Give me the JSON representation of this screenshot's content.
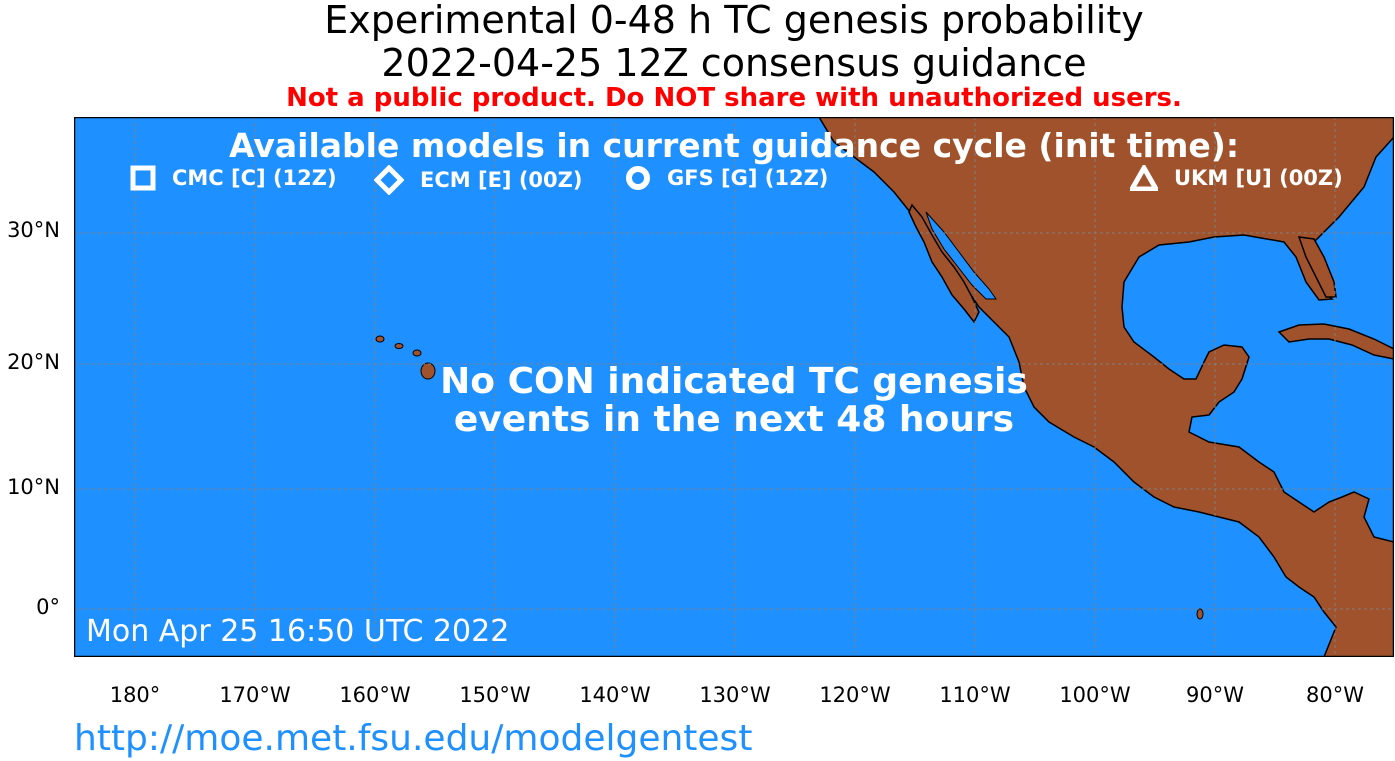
{
  "header": {
    "title_line1": "Experimental 0-48 h TC genesis probability",
    "title_line2": "2022-04-25 12Z consensus guidance",
    "warning": "Not a public product. Do NOT share with unauthorized users."
  },
  "legend": {
    "title": "Available models in current guidance cycle (init time):",
    "models": [
      {
        "label": "CMC [C] (12Z)",
        "symbol": "square-icon"
      },
      {
        "label": "ECM [E] (00Z)",
        "symbol": "diamond-icon"
      },
      {
        "label": "GFS [G] (12Z)",
        "symbol": "circle-icon"
      },
      {
        "label": "UKM [U] (00Z)",
        "symbol": "triangle-icon"
      }
    ]
  },
  "message": {
    "line1": "No CON indicated TC genesis",
    "line2": "events in the next 48 hours"
  },
  "timestamp": "Mon Apr 25 16:50 UTC 2022",
  "axes": {
    "y_ticks": [
      "30°N",
      "20°N",
      "10°N",
      "0°"
    ],
    "x_ticks": [
      "180°",
      "170°W",
      "160°W",
      "150°W",
      "140°W",
      "130°W",
      "120°W",
      "110°W",
      "100°W",
      "90°W",
      "80°W"
    ]
  },
  "url": "http://moe.met.fsu.edu/modelgentest",
  "colors": {
    "ocean": "#1e90ff",
    "land": "#a0522d",
    "warning": "#ff0000",
    "url": "#1e90ff",
    "grid": "#808080"
  }
}
